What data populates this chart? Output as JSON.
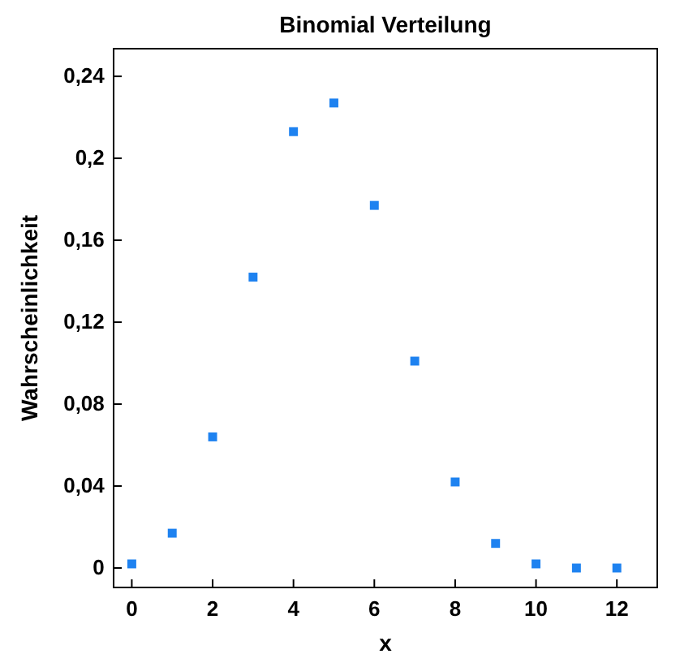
{
  "chart_data": {
    "type": "scatter",
    "title": "Binomial Verteilung",
    "xlabel": "x",
    "ylabel": "Wahrscheinlichkeit",
    "x": [
      0,
      1,
      2,
      3,
      4,
      5,
      6,
      7,
      8,
      9,
      10,
      11,
      12
    ],
    "values": [
      0.002,
      0.017,
      0.064,
      0.142,
      0.213,
      0.227,
      0.177,
      0.101,
      0.042,
      0.012,
      0.002,
      0,
      0
    ],
    "color": "#1e82f0",
    "marker": "square",
    "xlim": [
      -0.45,
      13
    ],
    "xticks": [
      0,
      2,
      4,
      6,
      8,
      10,
      12
    ],
    "ylim": [
      -0.0095,
      0.2535
    ],
    "yticks": [
      {
        "value": 0,
        "label": "0"
      },
      {
        "value": 0.04,
        "label": "0,04"
      },
      {
        "value": 0.08,
        "label": "0,08"
      },
      {
        "value": 0.12,
        "label": "0,12"
      },
      {
        "value": 0.16,
        "label": "0,16"
      },
      {
        "value": 0.2,
        "label": "0,2"
      },
      {
        "value": 0.24,
        "label": "0,24"
      }
    ],
    "grid": false
  }
}
